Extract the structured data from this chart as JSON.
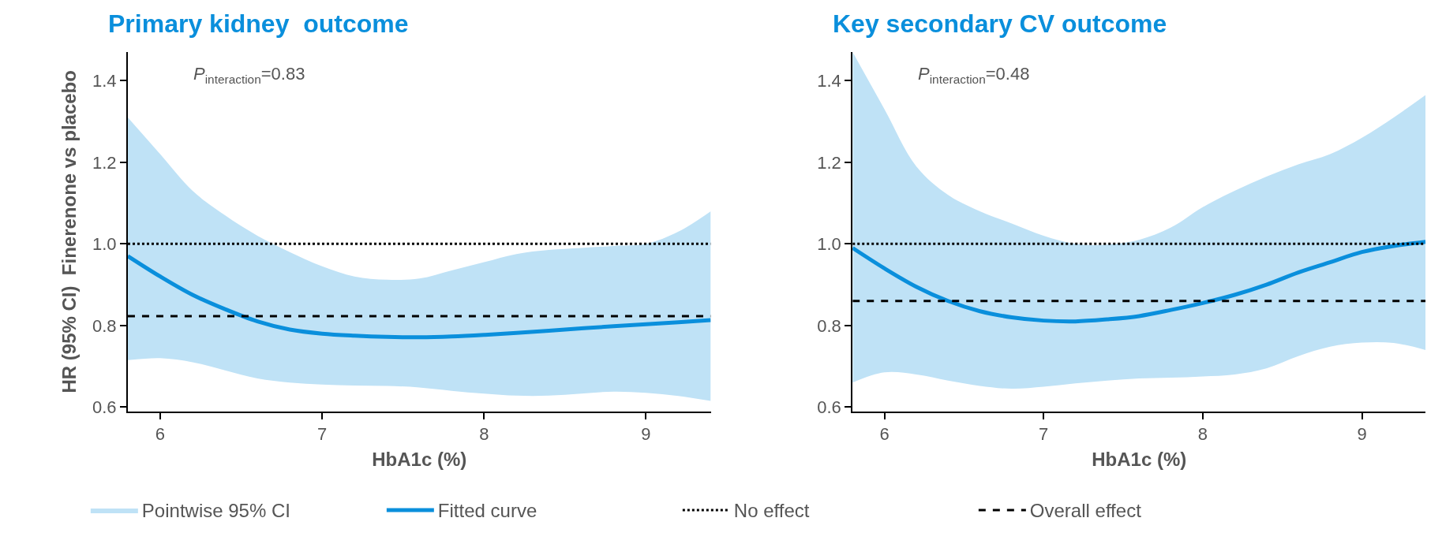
{
  "chart_data": [
    {
      "type": "line",
      "title": "Primary kidney  outcome",
      "xlabel": "HbA1c (%)",
      "ylabel": "HR (95% CI)  Finerenone vs placebo",
      "x": [
        5.8,
        6.0,
        6.2,
        6.4,
        6.6,
        6.8,
        7.0,
        7.2,
        7.4,
        7.6,
        7.8,
        8.0,
        8.2,
        8.4,
        8.6,
        8.8,
        9.0,
        9.2,
        9.4
      ],
      "series": [
        {
          "name": "Fitted curve",
          "color": "#0a8fdc",
          "values": [
            0.97,
            0.92,
            0.875,
            0.84,
            0.81,
            0.79,
            0.78,
            0.775,
            0.772,
            0.771,
            0.773,
            0.777,
            0.782,
            0.787,
            0.793,
            0.798,
            0.803,
            0.808,
            0.813
          ],
          "upper": [
            1.31,
            1.22,
            1.13,
            1.07,
            1.02,
            0.98,
            0.945,
            0.92,
            0.912,
            0.915,
            0.935,
            0.955,
            0.975,
            0.985,
            0.99,
            0.995,
            1.0,
            1.03,
            1.08
          ],
          "lower": [
            0.715,
            0.72,
            0.71,
            0.69,
            0.67,
            0.66,
            0.655,
            0.653,
            0.652,
            0.648,
            0.64,
            0.633,
            0.628,
            0.628,
            0.633,
            0.638,
            0.635,
            0.627,
            0.615
          ]
        }
      ],
      "ref_lines": [
        {
          "axis": "y",
          "value": 1.0,
          "label": "No effect",
          "color": "#000000",
          "line_style": "dotted"
        },
        {
          "axis": "y",
          "value": 0.823,
          "label": "Overall effect",
          "color": "#000000",
          "line_style": "dashed"
        }
      ],
      "annotations": [
        "P$_{interaction}$=0.83",
        "Pointwise 95% CI"
      ],
      "xlim": [
        5.8,
        9.4
      ],
      "xticks": [
        6,
        7,
        8,
        9
      ],
      "ylim": [
        0.59,
        1.47
      ],
      "yticks": [
        0.6,
        0.8,
        {
          "value": 1,
          "label": "1.0"
        },
        1.2,
        1.4
      ],
      "grid": false,
      "legend": "bottom",
      "line_style": "solid",
      "marker": "none"
    },
    {
      "type": "line",
      "title": "Key secondary CV outcome",
      "xlabel": "HbA1c (%)",
      "x": [
        5.8,
        6.0,
        6.2,
        6.4,
        6.6,
        6.8,
        7.0,
        7.2,
        7.4,
        7.6,
        7.8,
        8.0,
        8.2,
        8.4,
        8.6,
        8.8,
        9.0,
        9.2,
        9.4
      ],
      "series": [
        {
          "color": "#0a8fdc",
          "values": [
            0.99,
            0.94,
            0.895,
            0.86,
            0.835,
            0.82,
            0.812,
            0.81,
            0.815,
            0.823,
            0.838,
            0.855,
            0.875,
            0.9,
            0.93,
            0.955,
            0.98,
            0.995,
            1.005
          ],
          "upper": [
            1.47,
            1.33,
            1.19,
            1.12,
            1.08,
            1.05,
            1.02,
            1.0,
            0.998,
            1.01,
            1.04,
            1.09,
            1.13,
            1.165,
            1.195,
            1.22,
            1.26,
            1.31,
            1.365
          ],
          "lower": [
            0.66,
            0.685,
            0.68,
            0.665,
            0.652,
            0.645,
            0.65,
            0.658,
            0.665,
            0.67,
            0.672,
            0.675,
            0.68,
            0.695,
            0.725,
            0.748,
            0.758,
            0.757,
            0.74
          ]
        }
      ],
      "ref_lines": [
        {
          "axis": "y",
          "value": 1.0,
          "color": "#000000",
          "line_style": "dotted"
        },
        {
          "axis": "y",
          "value": 0.86,
          "color": "#000000",
          "line_style": "dashed"
        }
      ],
      "annotations": [
        "P$_{interaction}$=0.48"
      ],
      "xlim": [
        5.8,
        9.4
      ],
      "xticks": [
        6,
        7,
        8,
        9
      ],
      "ylim": [
        0.59,
        1.47
      ],
      "yticks": [
        0.6,
        0.8,
        {
          "value": 1,
          "label": "1.0"
        },
        1.2,
        1.4
      ],
      "grid": false,
      "line_style": "solid",
      "marker": "none"
    }
  ]
}
